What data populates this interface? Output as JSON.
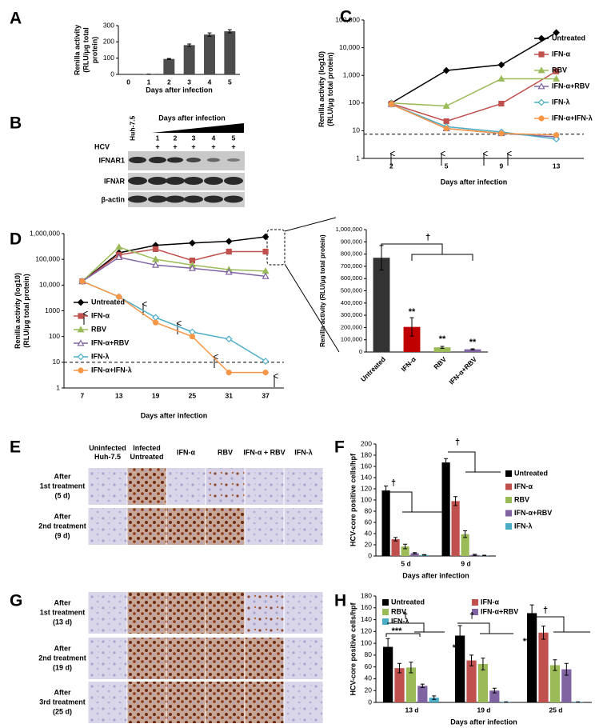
{
  "chart_data": [
    {
      "type": "bar",
      "panel": "A",
      "categories": [
        "0",
        "1",
        "2",
        "3",
        "4",
        "5"
      ],
      "values": [
        0,
        2,
        95,
        180,
        245,
        265
      ],
      "errors": [
        0,
        0,
        3,
        7,
        10,
        10
      ],
      "color": "#4d4d4d",
      "ylim": [
        0,
        300
      ],
      "yticks": [
        0,
        100,
        200,
        300
      ],
      "ylabel": [
        "Renilla activity",
        "(RLU/μg total",
        "protein)"
      ],
      "xlabel": "Days after infection"
    },
    {
      "type": "line",
      "panel": "C",
      "categories": [
        "2",
        "5",
        "9",
        "13"
      ],
      "log_scale": true,
      "ylim": [
        1,
        100000
      ],
      "yticks": [
        1,
        10,
        100,
        {
          "value": 1000,
          "label": "1,000"
        },
        {
          "value": 10000,
          "label": "10,000"
        },
        {
          "value": 100000,
          "label": "100,000"
        }
      ],
      "ylabel": [
        "Renilla activity (log10)",
        "(RLU/μg total protein)"
      ],
      "xlabel": "Days after infection",
      "reference_line": 7.5,
      "legend": "right",
      "series": [
        {
          "name": "Untreated",
          "color": "#000000",
          "marker": "diamond",
          "values": [
            100,
            1500,
            2400,
            35000
          ]
        },
        {
          "name": "IFN-α",
          "color": "#c0504d",
          "marker": "square",
          "values": [
            95,
            22,
            95,
            1400
          ]
        },
        {
          "name": "RBV",
          "color": "#9bbb59",
          "marker": "triangle",
          "values": [
            100,
            78,
            750,
            750
          ]
        },
        {
          "name": "IFN-α+RBV",
          "color": "#8064a2",
          "marker": "triangle-open",
          "values": [
            90,
            12,
            8,
            6
          ]
        },
        {
          "name": "IFN-λ",
          "color": "#4bacc6",
          "marker": "diamond-open",
          "values": [
            90,
            14,
            9,
            5
          ]
        },
        {
          "name": "IFN-α+IFN-λ",
          "color": "#f79646",
          "marker": "circle",
          "values": [
            90,
            12,
            8,
            7
          ]
        }
      ]
    },
    {
      "type": "line",
      "panel": "D",
      "categories": [
        "7",
        "13",
        "19",
        "25",
        "31",
        "37"
      ],
      "log_scale": true,
      "ylim": [
        1,
        1000000
      ],
      "yticks": [
        1,
        10,
        100,
        1000,
        {
          "value": 10000,
          "label": "10,000"
        },
        {
          "value": 100000,
          "label": "100,000"
        },
        {
          "value": 1000000,
          "label": "1,000,000"
        }
      ],
      "ylabel": [
        "Renilla activity (log10)",
        "(RLU/μg total protein)"
      ],
      "xlabel": "Days after infection",
      "reference_line": 10,
      "legend": "lower left",
      "series": [
        {
          "name": "Untreated",
          "color": "#000000",
          "marker": "diamond",
          "values": [
            14000,
            180000,
            350000,
            430000,
            500000,
            750000
          ]
        },
        {
          "name": "IFN-α",
          "color": "#c0504d",
          "marker": "square",
          "values": [
            14000,
            150000,
            250000,
            90000,
            200000,
            200000
          ]
        },
        {
          "name": "RBV",
          "color": "#9bbb59",
          "marker": "triangle",
          "values": [
            14000,
            300000,
            100000,
            60000,
            40000,
            35000
          ]
        },
        {
          "name": "IFN-α+RBV",
          "color": "#8064a2",
          "marker": "triangle-open",
          "values": [
            14000,
            120000,
            60000,
            45000,
            32000,
            22000
          ]
        },
        {
          "name": "IFN-λ",
          "color": "#4bacc6",
          "marker": "diamond-open",
          "values": [
            14000,
            3500,
            550,
            150,
            80,
            11
          ]
        },
        {
          "name": "IFN-α+IFN-λ",
          "color": "#f79646",
          "marker": "circle",
          "values": [
            14000,
            3500,
            350,
            100,
            4,
            4
          ]
        }
      ]
    },
    {
      "type": "bar",
      "categories": [
        "Untreated",
        "IFN-α",
        "RBV",
        "IFN-α+RBV"
      ],
      "values": [
        770000,
        205000,
        38000,
        22000
      ],
      "errors": [
        100000,
        75000,
        8000,
        4000
      ],
      "colors": [
        "#333333",
        "#c00000",
        "#9bbb59",
        "#8064a2"
      ],
      "ylim": [
        0,
        1000000
      ],
      "yticks": [
        0,
        {
          "value": 100000,
          "label": "100,000"
        },
        {
          "value": 200000,
          "label": "200,000"
        },
        {
          "value": 300000,
          "label": "300,000"
        },
        {
          "value": 400000,
          "label": "400,000"
        },
        {
          "value": 500000,
          "label": "500,000"
        },
        {
          "value": 600000,
          "label": "600,000"
        },
        {
          "value": 700000,
          "label": "700,000"
        },
        {
          "value": 800000,
          "label": "800,000"
        },
        {
          "value": 900000,
          "label": "900,000"
        },
        {
          "value": 1000000,
          "label": "1,000,000"
        }
      ],
      "ylabel": [
        "Renilla activity (RLU/μg total protein)"
      ],
      "annotations": [
        "**",
        "**",
        "**",
        "†"
      ]
    },
    {
      "type": "bar",
      "panel": "F",
      "categories": [
        "5 d",
        "9 d"
      ],
      "ylim": [
        0,
        200
      ],
      "yticks": [
        0,
        20,
        40,
        60,
        80,
        100,
        120,
        140,
        160,
        180,
        200
      ],
      "ylabel": [
        "HCV-core positive cells/hpf"
      ],
      "xlabel": "Days after infection",
      "legend": "right",
      "annotations": [
        "†",
        "†"
      ],
      "series": [
        {
          "name": "Untreated",
          "color": "#000000",
          "values": [
            117,
            167
          ],
          "errors": [
            8,
            7
          ]
        },
        {
          "name": "IFN-α",
          "color": "#c0504d",
          "values": [
            30,
            98
          ],
          "errors": [
            3,
            8
          ]
        },
        {
          "name": "RBV",
          "color": "#9bbb59",
          "values": [
            17,
            39
          ],
          "errors": [
            4,
            6
          ]
        },
        {
          "name": "IFN-α+RBV",
          "color": "#8064a2",
          "values": [
            5,
            2
          ],
          "errors": [
            1,
            1
          ]
        },
        {
          "name": "IFN-λ",
          "color": "#4bacc6",
          "values": [
            2,
            1
          ],
          "errors": [
            0.5,
            0.5
          ]
        }
      ]
    },
    {
      "type": "bar",
      "panel": "H",
      "categories": [
        "13 d",
        "19 d",
        "25 d"
      ],
      "ylim": [
        0,
        180
      ],
      "yticks": [
        0,
        20,
        40,
        60,
        80,
        100,
        120,
        140,
        160,
        180
      ],
      "ylabel": [
        "HCV-core positive cells/hpf"
      ],
      "xlabel": "Days after infection",
      "legend": "top",
      "annotations": [
        "***",
        "†",
        "***",
        "†",
        "**",
        "†"
      ],
      "series": [
        {
          "name": "Untreated",
          "color": "#000000",
          "values": [
            94,
            113,
            151
          ],
          "errors": [
            14,
            17,
            14
          ]
        },
        {
          "name": "IFN-α",
          "color": "#c0504d",
          "values": [
            58,
            71,
            118
          ],
          "errors": [
            8,
            9,
            11
          ]
        },
        {
          "name": "RBV",
          "color": "#9bbb59",
          "values": [
            59,
            65,
            63
          ],
          "errors": [
            9,
            10,
            9
          ]
        },
        {
          "name": "IFN-α+RBV",
          "color": "#8064a2",
          "values": [
            28,
            20,
            56
          ],
          "errors": [
            3,
            4,
            10
          ]
        },
        {
          "name": "IFN-λ",
          "color": "#4bacc6",
          "values": [
            8,
            1,
            1
          ],
          "errors": [
            3,
            0,
            0
          ]
        }
      ]
    }
  ],
  "blot": {
    "panel": "B",
    "header": "Days after infection",
    "row_label": "HCV",
    "lanes": [
      "Huh-7.5",
      "1",
      "2",
      "3",
      "4",
      "5"
    ],
    "hcv": [
      "+",
      "+",
      "+",
      "+",
      "+"
    ],
    "bands": [
      "IFNAR1",
      "IFNλR",
      "β-actin"
    ]
  },
  "micrographs": [
    {
      "panel": "E",
      "columns": [
        [
          "Uninfected",
          "Huh-7.5"
        ],
        [
          "Infected",
          "Untreated"
        ],
        [
          "IFN-α"
        ],
        [
          "RBV"
        ],
        [
          "IFN-α + RBV"
        ],
        [
          "IFN-λ"
        ]
      ],
      "rows": [
        [
          "After",
          "1st treatment",
          "(5 d)"
        ],
        [
          "After",
          "2nd treatment",
          "(9 d)"
        ]
      ]
    },
    {
      "panel": "G",
      "rows": [
        [
          "After",
          "1st treatment",
          "(13 d)"
        ],
        [
          "After",
          "2nd treatment",
          "(19 d)"
        ],
        [
          "After",
          "3rd treatment",
          "(25 d)"
        ]
      ]
    }
  ]
}
